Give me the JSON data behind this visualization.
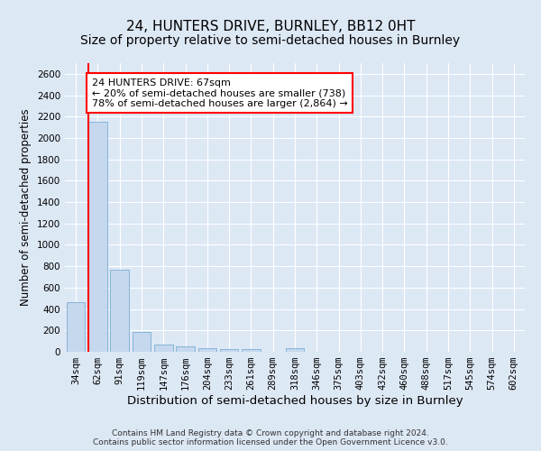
{
  "title": "24, HUNTERS DRIVE, BURNLEY, BB12 0HT",
  "subtitle": "Size of property relative to semi-detached houses in Burnley",
  "xlabel": "Distribution of semi-detached houses by size in Burnley",
  "ylabel": "Number of semi-detached properties",
  "categories": [
    "34sqm",
    "62sqm",
    "91sqm",
    "119sqm",
    "147sqm",
    "176sqm",
    "204sqm",
    "233sqm",
    "261sqm",
    "289sqm",
    "318sqm",
    "346sqm",
    "375sqm",
    "403sqm",
    "432sqm",
    "460sqm",
    "488sqm",
    "517sqm",
    "545sqm",
    "574sqm",
    "602sqm"
  ],
  "values": [
    460,
    2150,
    770,
    185,
    65,
    50,
    35,
    25,
    25,
    0,
    30,
    0,
    0,
    0,
    0,
    0,
    0,
    0,
    0,
    0,
    0
  ],
  "bar_color": "#c5d8ee",
  "bar_edge_color": "#7aadd4",
  "property_line_x": 1,
  "annotation_text": "24 HUNTERS DRIVE: 67sqm\n← 20% of semi-detached houses are smaller (738)\n78% of semi-detached houses are larger (2,864) →",
  "annotation_box_color": "white",
  "annotation_box_edge_color": "red",
  "property_line_color": "red",
  "ylim": [
    0,
    2700
  ],
  "yticks": [
    0,
    200,
    400,
    600,
    800,
    1000,
    1200,
    1400,
    1600,
    1800,
    2000,
    2200,
    2400,
    2600
  ],
  "background_color": "#dde8f5",
  "grid_color": "white",
  "footer_line1": "Contains HM Land Registry data © Crown copyright and database right 2024.",
  "footer_line2": "Contains public sector information licensed under the Open Government Licence v3.0.",
  "title_fontsize": 11,
  "subtitle_fontsize": 10,
  "tick_fontsize": 7.5,
  "ylabel_fontsize": 8.5,
  "xlabel_fontsize": 9.5,
  "annotation_fontsize": 8,
  "footer_fontsize": 6.5
}
